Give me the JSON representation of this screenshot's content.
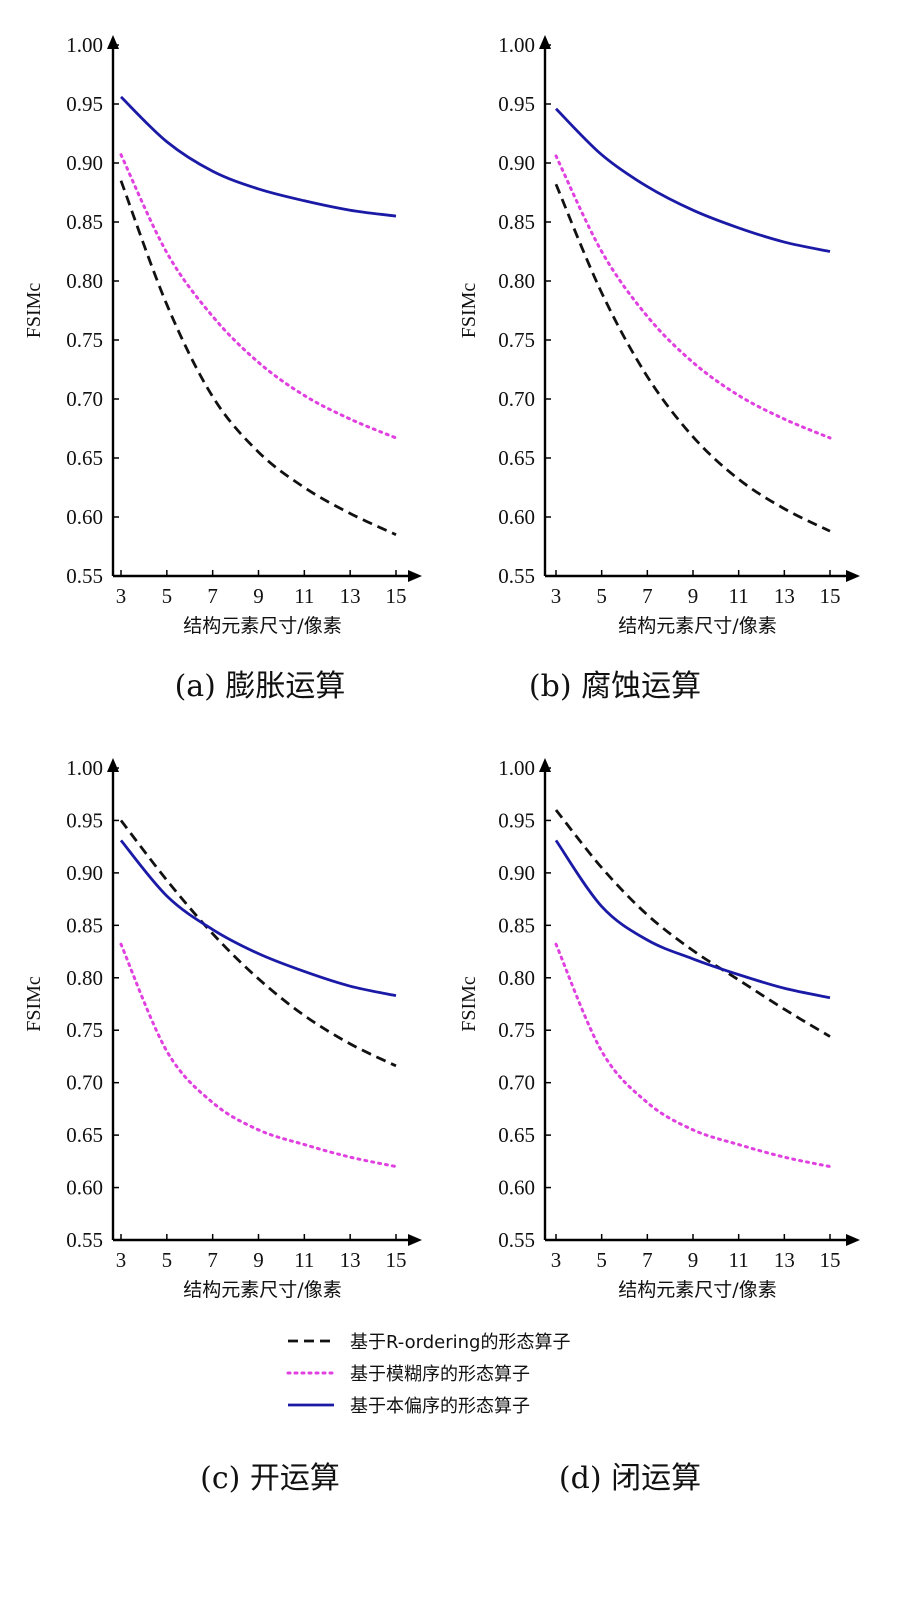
{
  "chart_data": [
    {
      "type": "line",
      "caption": "(a) 膨胀运算",
      "xlabel": "结构元素尺寸/像素",
      "ylabel": "FSIMc",
      "x": [
        3,
        5,
        7,
        9,
        11,
        13,
        15
      ],
      "xlim": [
        2.5,
        15.5
      ],
      "ylim": [
        0.55,
        1.0
      ],
      "yticks": [
        "0.55",
        "0.60",
        "0.65",
        "0.70",
        "0.75",
        "0.80",
        "0.85",
        "0.90",
        "0.95",
        "1.00"
      ],
      "grid": false,
      "series": [
        {
          "name": "基于R-ordering的形态算子",
          "style": "dashed",
          "color": "#111111",
          "values": [
            0.885,
            0.78,
            0.702,
            0.655,
            0.625,
            0.603,
            0.585
          ]
        },
        {
          "name": "基于模糊序的形态算子",
          "style": "dotted",
          "color": "#e040e0",
          "values": [
            0.907,
            0.824,
            0.77,
            0.731,
            0.703,
            0.683,
            0.667
          ]
        },
        {
          "name": "基于本偏序的形态算子",
          "style": "solid",
          "color": "#1a1aa6",
          "values": [
            0.956,
            0.918,
            0.893,
            0.878,
            0.868,
            0.86,
            0.855
          ]
        }
      ]
    },
    {
      "type": "line",
      "caption": "(b) 腐蚀运算",
      "xlabel": "结构元素尺寸/像素",
      "ylabel": "FSIMc",
      "x": [
        3,
        5,
        7,
        9,
        11,
        13,
        15
      ],
      "xlim": [
        2.5,
        15.5
      ],
      "ylim": [
        0.55,
        1.0
      ],
      "yticks": [
        "0.55",
        "0.60",
        "0.65",
        "0.70",
        "0.75",
        "0.80",
        "0.85",
        "0.90",
        "0.95",
        "1.00"
      ],
      "grid": false,
      "series": [
        {
          "name": "基于R-ordering的形态算子",
          "style": "dashed",
          "color": "#111111",
          "values": [
            0.882,
            0.79,
            0.719,
            0.668,
            0.632,
            0.607,
            0.588
          ]
        },
        {
          "name": "基于模糊序的形态算子",
          "style": "dotted",
          "color": "#e040e0",
          "values": [
            0.906,
            0.825,
            0.77,
            0.731,
            0.703,
            0.683,
            0.667
          ]
        },
        {
          "name": "基于本偏序的形态算子",
          "style": "solid",
          "color": "#1a1aa6",
          "values": [
            0.946,
            0.907,
            0.88,
            0.86,
            0.845,
            0.833,
            0.825
          ]
        }
      ]
    },
    {
      "type": "line",
      "caption": "(c) 开运算",
      "xlabel": "结构元素尺寸/像素",
      "ylabel": "FSIMc",
      "x": [
        3,
        5,
        7,
        9,
        11,
        13,
        15
      ],
      "xlim": [
        2.5,
        15.5
      ],
      "ylim": [
        0.55,
        1.0
      ],
      "yticks": [
        "0.55",
        "0.60",
        "0.65",
        "0.70",
        "0.75",
        "0.80",
        "0.85",
        "0.90",
        "0.95",
        "1.00"
      ],
      "grid": false,
      "series": [
        {
          "name": "基于R-ordering的形态算子",
          "style": "dashed",
          "color": "#111111",
          "values": [
            0.95,
            0.893,
            0.842,
            0.799,
            0.764,
            0.737,
            0.716
          ]
        },
        {
          "name": "基于模糊序的形态算子",
          "style": "dotted",
          "color": "#e040e0",
          "values": [
            0.832,
            0.73,
            0.681,
            0.655,
            0.641,
            0.629,
            0.62
          ]
        },
        {
          "name": "基于本偏序的形态算子",
          "style": "solid",
          "color": "#1a1aa6",
          "values": [
            0.931,
            0.878,
            0.846,
            0.823,
            0.806,
            0.792,
            0.783
          ]
        }
      ]
    },
    {
      "type": "line",
      "caption": "(d) 闭运算",
      "xlabel": "结构元素尺寸/像素",
      "ylabel": "FSIMc",
      "x": [
        3,
        5,
        7,
        9,
        11,
        13,
        15
      ],
      "xlim": [
        2.5,
        15.5
      ],
      "ylim": [
        0.55,
        1.0
      ],
      "yticks": [
        "0.55",
        "0.60",
        "0.65",
        "0.70",
        "0.75",
        "0.80",
        "0.85",
        "0.90",
        "0.95",
        "1.00"
      ],
      "grid": false,
      "series": [
        {
          "name": "基于R-ordering的形态算子",
          "style": "dashed",
          "color": "#111111",
          "values": [
            0.96,
            0.905,
            0.86,
            0.826,
            0.798,
            0.77,
            0.744
          ]
        },
        {
          "name": "基于模糊序的形态算子",
          "style": "dotted",
          "color": "#e040e0",
          "values": [
            0.832,
            0.73,
            0.681,
            0.655,
            0.641,
            0.629,
            0.62
          ]
        },
        {
          "name": "基于本偏序的形态算子",
          "style": "solid",
          "color": "#1a1aa6",
          "values": [
            0.931,
            0.868,
            0.836,
            0.818,
            0.803,
            0.79,
            0.781
          ]
        }
      ]
    }
  ],
  "legend": {
    "placement": "bottom-center",
    "items": [
      {
        "label": "基于R-ordering的形态算子",
        "style": "dashed",
        "color": "#111111"
      },
      {
        "label": "基于模糊序的形态算子",
        "style": "dotted",
        "color": "#e040e0"
      },
      {
        "label": "基于本偏序的形态算子",
        "style": "solid",
        "color": "#1a1aa6"
      }
    ]
  }
}
